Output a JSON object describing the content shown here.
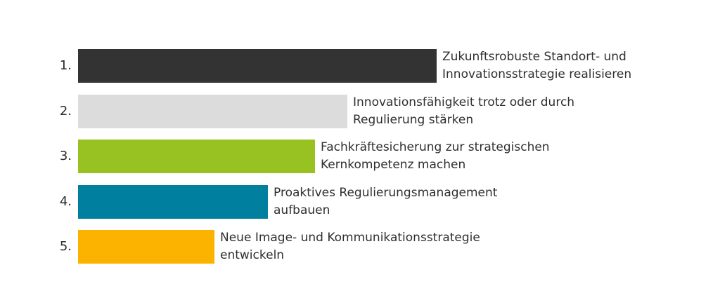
{
  "chart_data": {
    "type": "bar",
    "orientation": "horizontal",
    "title": "",
    "xlabel": "",
    "ylabel": "",
    "categories": [
      "1.",
      "2.",
      "3.",
      "4.",
      "5."
    ],
    "values": [
      100,
      75,
      66,
      53,
      38
    ],
    "xlim": [
      0,
      100
    ],
    "grid": false,
    "legend": "none",
    "labels": [
      [
        "Zukunftsrobuste Standort- und",
        "Innovationsstrategie realisieren"
      ],
      [
        "Innovationsfähigkeit trotz oder durch",
        "Regulierung stärken"
      ],
      [
        "Fachkräftesicherung zur strategischen",
        "Kernkompetenz machen"
      ],
      [
        "Proaktives Regulierungsmanagement",
        "aufbauen"
      ],
      [
        "Neue Image- und Kommunikationsstrategie",
        "entwickeln"
      ]
    ],
    "colors": [
      "#333333",
      "#dcdcdc",
      "#97c221",
      "#00809e",
      "#fbb300"
    ]
  }
}
